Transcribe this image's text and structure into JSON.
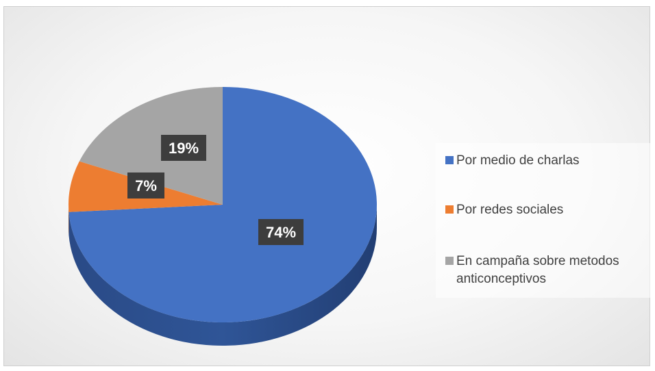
{
  "chart_data": {
    "type": "pie",
    "style": "3d",
    "title": "",
    "categories": [
      "Por medio de charlas",
      "Por redes sociales",
      "En campaña sobre metodos anticonceptivos"
    ],
    "values": [
      74,
      7,
      19
    ],
    "labels": [
      "74%",
      "7%",
      "19%"
    ],
    "colors": [
      "#4472C4",
      "#ED7D31",
      "#A5A5A5"
    ],
    "legend_position": "right",
    "start_angle": "12 o'clock",
    "direction": "clockwise"
  },
  "legend": {
    "items": [
      {
        "label": "Por medio de charlas",
        "color": "#4472C4"
      },
      {
        "label": "Por redes sociales",
        "color": "#ED7D31"
      },
      {
        "label": "En campaña sobre metodos anticonceptivos",
        "color": "#A5A5A5"
      }
    ]
  }
}
